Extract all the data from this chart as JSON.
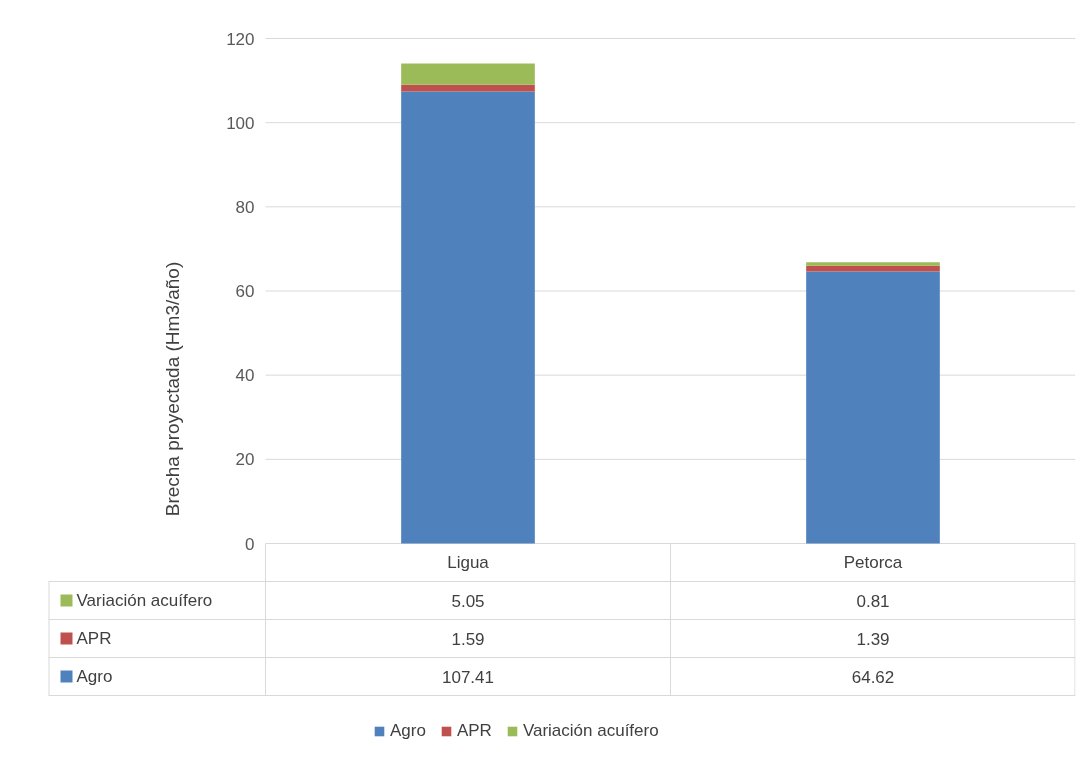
{
  "chart_data": {
    "type": "bar",
    "stacked": true,
    "ylabel": "Brecha proyectada (Hm3/año)",
    "categories": [
      "Ligua",
      "Petorca"
    ],
    "series": [
      {
        "name": "Agro",
        "color": "#4f81bd",
        "values": [
          107.41,
          64.62
        ]
      },
      {
        "name": "APR",
        "color": "#c0504d",
        "values": [
          1.59,
          1.39
        ]
      },
      {
        "name": "Variación acuífero",
        "color": "#9bbb59",
        "values": [
          5.05,
          0.81
        ]
      }
    ],
    "ylim": [
      0,
      120
    ],
    "yticks": [
      0,
      20,
      40,
      60,
      80,
      100,
      120
    ],
    "grid": "y",
    "legend": "bottom",
    "data_labels": true
  }
}
